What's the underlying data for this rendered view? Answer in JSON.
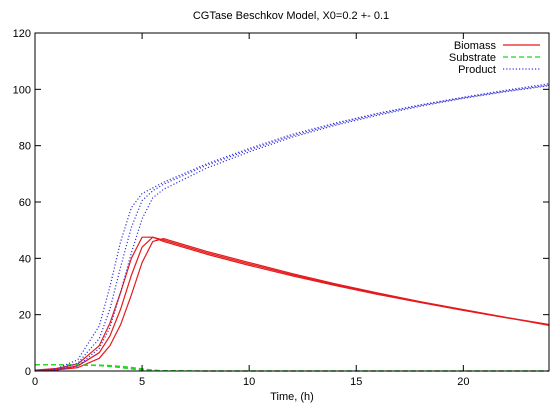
{
  "chart_data": {
    "type": "line",
    "title": "CGTase Beschkov Model, X0=0.2 +- 0.1",
    "xlabel": "Time, (h)",
    "ylabel": "",
    "xlim": [
      0,
      24
    ],
    "ylim": [
      0,
      120
    ],
    "x_ticks": [
      0,
      5,
      10,
      15,
      20
    ],
    "y_ticks": [
      0,
      20,
      40,
      60,
      80,
      100,
      120
    ],
    "x_tick_labels": [
      "0",
      "5",
      "10",
      "15",
      "20"
    ],
    "y_tick_labels": [
      "0",
      "20",
      "40",
      "60",
      "80",
      "100",
      "120"
    ],
    "grid": false,
    "legend_position": "top-right",
    "series": [
      {
        "name": "Biomass",
        "color": "#e41a1c",
        "style": "solid",
        "group": "Biomass",
        "x": [
          0,
          1,
          2,
          3,
          3.5,
          4,
          4.5,
          5,
          5.5,
          6,
          8,
          10,
          12,
          14,
          16,
          18,
          20,
          22,
          24
        ],
        "y": [
          0.3,
          0.9,
          2.5,
          9,
          17,
          28,
          40,
          47.5,
          47.5,
          46,
          41.5,
          37.5,
          33.8,
          30.4,
          27.2,
          24.3,
          21.5,
          18.9,
          16.4
        ]
      },
      {
        "name": "",
        "color": "#e41a1c",
        "style": "solid",
        "group": "Biomass",
        "x": [
          0,
          1,
          2,
          3,
          3.5,
          4,
          4.5,
          5,
          5.5,
          6,
          8,
          10,
          12,
          14,
          16,
          18,
          20,
          22,
          24
        ],
        "y": [
          0.2,
          0.6,
          1.8,
          6.5,
          12.5,
          22,
          34,
          44,
          47.5,
          46.5,
          42,
          38,
          34.2,
          30.7,
          27.5,
          24.5,
          21.7,
          19,
          16.5
        ]
      },
      {
        "name": "",
        "color": "#e41a1c",
        "style": "solid",
        "group": "Biomass",
        "x": [
          0,
          1,
          2,
          3,
          3.5,
          4,
          4.5,
          5,
          5.5,
          6,
          8,
          10,
          12,
          14,
          16,
          18,
          20,
          22,
          24
        ],
        "y": [
          0.1,
          0.4,
          1.2,
          4.5,
          9,
          16.5,
          27,
          38.5,
          46,
          47,
          42.5,
          38.5,
          34.6,
          31,
          27.7,
          24.6,
          21.8,
          19,
          16.2
        ]
      },
      {
        "name": "Substrate",
        "color": "#1fd81f",
        "style": "dashed",
        "group": "Substrate",
        "x": [
          0,
          1,
          2,
          3,
          3.5,
          4,
          4.5,
          5,
          5.5,
          6,
          8,
          24
        ],
        "y": [
          2.2,
          2.2,
          2.1,
          1.9,
          1.6,
          1.2,
          0.7,
          0.3,
          0.1,
          0.05,
          0,
          0
        ]
      },
      {
        "name": "",
        "color": "#1fd81f",
        "style": "dashed",
        "group": "Substrate",
        "x": [
          0,
          1,
          2,
          3,
          3.5,
          4,
          4.5,
          5,
          5.5,
          6,
          8,
          24
        ],
        "y": [
          2.2,
          2.2,
          2.15,
          2.0,
          1.8,
          1.5,
          1.0,
          0.5,
          0.2,
          0.08,
          0,
          0
        ]
      },
      {
        "name": "",
        "color": "#1fd81f",
        "style": "dashed",
        "group": "Substrate",
        "x": [
          0,
          1,
          2,
          3,
          3.5,
          4,
          4.5,
          5,
          5.5,
          6,
          8,
          24
        ],
        "y": [
          2.2,
          2.2,
          2.18,
          2.1,
          1.95,
          1.7,
          1.3,
          0.8,
          0.35,
          0.12,
          0,
          0
        ]
      },
      {
        "name": "Product",
        "color": "#3333dd",
        "style": "dotted",
        "group": "Product",
        "x": [
          0,
          1,
          2,
          3,
          3.5,
          4,
          4.5,
          5,
          5.5,
          6,
          8,
          10,
          12,
          14,
          16,
          18,
          20,
          22,
          24
        ],
        "y": [
          0,
          0.8,
          4,
          16,
          30,
          46,
          58,
          63,
          65,
          67,
          73.5,
          79,
          84,
          88,
          91.5,
          94.5,
          97.2,
          99.7,
          102
        ]
      },
      {
        "name": "",
        "color": "#3333dd",
        "style": "dotted",
        "group": "Product",
        "x": [
          0,
          1,
          2,
          3,
          3.5,
          4,
          4.5,
          5,
          5.5,
          6,
          8,
          10,
          12,
          14,
          16,
          18,
          20,
          22,
          24
        ],
        "y": [
          0,
          0.5,
          2.8,
          11.5,
          22,
          37,
          51,
          60.5,
          64,
          66.3,
          73,
          78.5,
          83.5,
          87.6,
          91.2,
          94.3,
          97,
          99.4,
          101.5
        ]
      },
      {
        "name": "",
        "color": "#3333dd",
        "style": "dotted",
        "group": "Product",
        "x": [
          0,
          1,
          2,
          3,
          3.5,
          4,
          4.5,
          5,
          5.5,
          6,
          8,
          10,
          12,
          14,
          16,
          18,
          20,
          22,
          24
        ],
        "y": [
          0,
          0.3,
          1.8,
          8,
          15.5,
          28,
          42,
          54,
          61.5,
          64.5,
          72,
          77.8,
          83,
          87.2,
          90.8,
          94,
          96.8,
          99.2,
          101.3
        ]
      }
    ]
  }
}
